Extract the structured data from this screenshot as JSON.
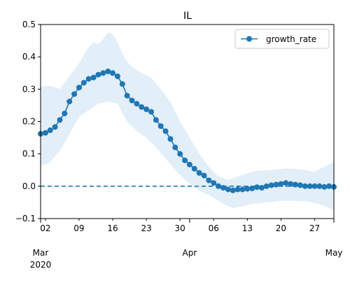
{
  "chart_data": {
    "type": "line",
    "title": "IL",
    "xlabel": "",
    "ylabel": "",
    "x_start": "2020-03-01",
    "x_end": "2020-05-01",
    "xlim": [
      "2020-03-01",
      "2020-05-01"
    ],
    "ylim": [
      -0.1,
      0.5
    ],
    "grid": false,
    "legend_position": "top-right",
    "x_minor_ticks": [
      {
        "date": "2020-03-02",
        "label": "02"
      },
      {
        "date": "2020-03-09",
        "label": "09"
      },
      {
        "date": "2020-03-16",
        "label": "16"
      },
      {
        "date": "2020-03-23",
        "label": "23"
      },
      {
        "date": "2020-03-30",
        "label": "30"
      },
      {
        "date": "2020-04-06",
        "label": "06"
      },
      {
        "date": "2020-04-13",
        "label": "13"
      },
      {
        "date": "2020-04-20",
        "label": "20"
      },
      {
        "date": "2020-04-27",
        "label": "27"
      }
    ],
    "x_major_ticks": [
      {
        "date": "2020-03-01",
        "label": "Mar",
        "sublabel": "2020"
      },
      {
        "date": "2020-04-01",
        "label": "Apr",
        "sublabel": ""
      },
      {
        "date": "2020-05-01",
        "label": "May",
        "sublabel": ""
      }
    ],
    "y_ticks": [
      {
        "value": -0.1,
        "label": "−0.1"
      },
      {
        "value": 0.0,
        "label": "0.0"
      },
      {
        "value": 0.1,
        "label": "0.1"
      },
      {
        "value": 0.2,
        "label": "0.2"
      },
      {
        "value": 0.3,
        "label": "0.3"
      },
      {
        "value": 0.4,
        "label": "0.4"
      },
      {
        "value": 0.5,
        "label": "0.5"
      }
    ],
    "reference_line": {
      "y": 0.0,
      "style": "dashed",
      "color": "#1f77b4"
    },
    "series": [
      {
        "name": "growth_rate",
        "color": "#1f77b4",
        "marker": "circle",
        "points": [
          [
            "2020-03-01",
            0.162
          ],
          [
            "2020-03-02",
            0.165
          ],
          [
            "2020-03-03",
            0.173
          ],
          [
            "2020-03-04",
            0.183
          ],
          [
            "2020-03-05",
            0.205
          ],
          [
            "2020-03-06",
            0.225
          ],
          [
            "2020-03-07",
            0.262
          ],
          [
            "2020-03-08",
            0.285
          ],
          [
            "2020-03-09",
            0.305
          ],
          [
            "2020-03-10",
            0.32
          ],
          [
            "2020-03-11",
            0.332
          ],
          [
            "2020-03-12",
            0.336
          ],
          [
            "2020-03-13",
            0.345
          ],
          [
            "2020-03-14",
            0.35
          ],
          [
            "2020-03-15",
            0.355
          ],
          [
            "2020-03-16",
            0.35
          ],
          [
            "2020-03-17",
            0.34
          ],
          [
            "2020-03-18",
            0.316
          ],
          [
            "2020-03-19",
            0.28
          ],
          [
            "2020-03-20",
            0.265
          ],
          [
            "2020-03-21",
            0.255
          ],
          [
            "2020-03-22",
            0.245
          ],
          [
            "2020-03-23",
            0.238
          ],
          [
            "2020-03-24",
            0.23
          ],
          [
            "2020-03-25",
            0.205
          ],
          [
            "2020-03-26",
            0.186
          ],
          [
            "2020-03-27",
            0.17
          ],
          [
            "2020-03-28",
            0.146
          ],
          [
            "2020-03-29",
            0.12
          ],
          [
            "2020-03-30",
            0.1
          ],
          [
            "2020-03-31",
            0.08
          ],
          [
            "2020-04-01",
            0.067
          ],
          [
            "2020-04-02",
            0.054
          ],
          [
            "2020-04-03",
            0.041
          ],
          [
            "2020-04-04",
            0.033
          ],
          [
            "2020-04-05",
            0.018
          ],
          [
            "2020-04-06",
            0.01
          ],
          [
            "2020-04-07",
            0.0
          ],
          [
            "2020-04-08",
            -0.005
          ],
          [
            "2020-04-09",
            -0.01
          ],
          [
            "2020-04-10",
            -0.013
          ],
          [
            "2020-04-11",
            -0.01
          ],
          [
            "2020-04-12",
            -0.01
          ],
          [
            "2020-04-13",
            -0.008
          ],
          [
            "2020-04-14",
            -0.007
          ],
          [
            "2020-04-15",
            -0.003
          ],
          [
            "2020-04-16",
            -0.005
          ],
          [
            "2020-04-17",
            0.0
          ],
          [
            "2020-04-18",
            0.003
          ],
          [
            "2020-04-19",
            0.005
          ],
          [
            "2020-04-20",
            0.007
          ],
          [
            "2020-04-21",
            0.01
          ],
          [
            "2020-04-22",
            0.007
          ],
          [
            "2020-04-23",
            0.005
          ],
          [
            "2020-04-24",
            0.003
          ],
          [
            "2020-04-25",
            0.0
          ],
          [
            "2020-04-26",
            0.0
          ],
          [
            "2020-04-27",
            0.0
          ],
          [
            "2020-04-28",
            0.0
          ],
          [
            "2020-04-29",
            -0.002
          ],
          [
            "2020-04-30",
            0.0
          ],
          [
            "2020-05-01",
            -0.002
          ]
        ]
      }
    ],
    "confidence_band": {
      "color": "#cfe2f3",
      "upper": [
        [
          "2020-03-01",
          0.308
        ],
        [
          "2020-03-03",
          0.31
        ],
        [
          "2020-03-05",
          0.3
        ],
        [
          "2020-03-06",
          0.32
        ],
        [
          "2020-03-07",
          0.34
        ],
        [
          "2020-03-09",
          0.38
        ],
        [
          "2020-03-11",
          0.43
        ],
        [
          "2020-03-12",
          0.445
        ],
        [
          "2020-03-13",
          0.44
        ],
        [
          "2020-03-14",
          0.455
        ],
        [
          "2020-03-15",
          0.475
        ],
        [
          "2020-03-16",
          0.47
        ],
        [
          "2020-03-17",
          0.445
        ],
        [
          "2020-03-18",
          0.41
        ],
        [
          "2020-03-19",
          0.385
        ],
        [
          "2020-03-20",
          0.37
        ],
        [
          "2020-03-22",
          0.35
        ],
        [
          "2020-03-24",
          0.335
        ],
        [
          "2020-03-26",
          0.3
        ],
        [
          "2020-03-28",
          0.26
        ],
        [
          "2020-03-30",
          0.2
        ],
        [
          "2020-04-01",
          0.15
        ],
        [
          "2020-04-03",
          0.1
        ],
        [
          "2020-04-05",
          0.06
        ],
        [
          "2020-04-07",
          0.03
        ],
        [
          "2020-04-09",
          0.02
        ],
        [
          "2020-04-11",
          0.03
        ],
        [
          "2020-04-13",
          0.04
        ],
        [
          "2020-04-15",
          0.048
        ],
        [
          "2020-04-18",
          0.05
        ],
        [
          "2020-04-21",
          0.055
        ],
        [
          "2020-04-24",
          0.052
        ],
        [
          "2020-04-27",
          0.045
        ],
        [
          "2020-04-29",
          0.06
        ],
        [
          "2020-05-01",
          0.075
        ]
      ],
      "lower": [
        [
          "2020-03-01",
          0.062
        ],
        [
          "2020-03-03",
          0.075
        ],
        [
          "2020-03-05",
          0.11
        ],
        [
          "2020-03-07",
          0.16
        ],
        [
          "2020-03-09",
          0.215
        ],
        [
          "2020-03-11",
          0.235
        ],
        [
          "2020-03-13",
          0.255
        ],
        [
          "2020-03-15",
          0.262
        ],
        [
          "2020-03-17",
          0.255
        ],
        [
          "2020-03-19",
          0.2
        ],
        [
          "2020-03-21",
          0.17
        ],
        [
          "2020-03-23",
          0.15
        ],
        [
          "2020-03-25",
          0.12
        ],
        [
          "2020-03-27",
          0.085
        ],
        [
          "2020-03-29",
          0.05
        ],
        [
          "2020-03-31",
          0.02
        ],
        [
          "2020-04-02",
          -0.005
        ],
        [
          "2020-04-04",
          -0.02
        ],
        [
          "2020-04-06",
          -0.035
        ],
        [
          "2020-04-08",
          -0.055
        ],
        [
          "2020-04-10",
          -0.068
        ],
        [
          "2020-04-12",
          -0.062
        ],
        [
          "2020-04-14",
          -0.055
        ],
        [
          "2020-04-17",
          -0.05
        ],
        [
          "2020-04-20",
          -0.045
        ],
        [
          "2020-04-23",
          -0.045
        ],
        [
          "2020-04-26",
          -0.048
        ],
        [
          "2020-04-29",
          -0.06
        ],
        [
          "2020-05-01",
          -0.075
        ]
      ]
    }
  }
}
